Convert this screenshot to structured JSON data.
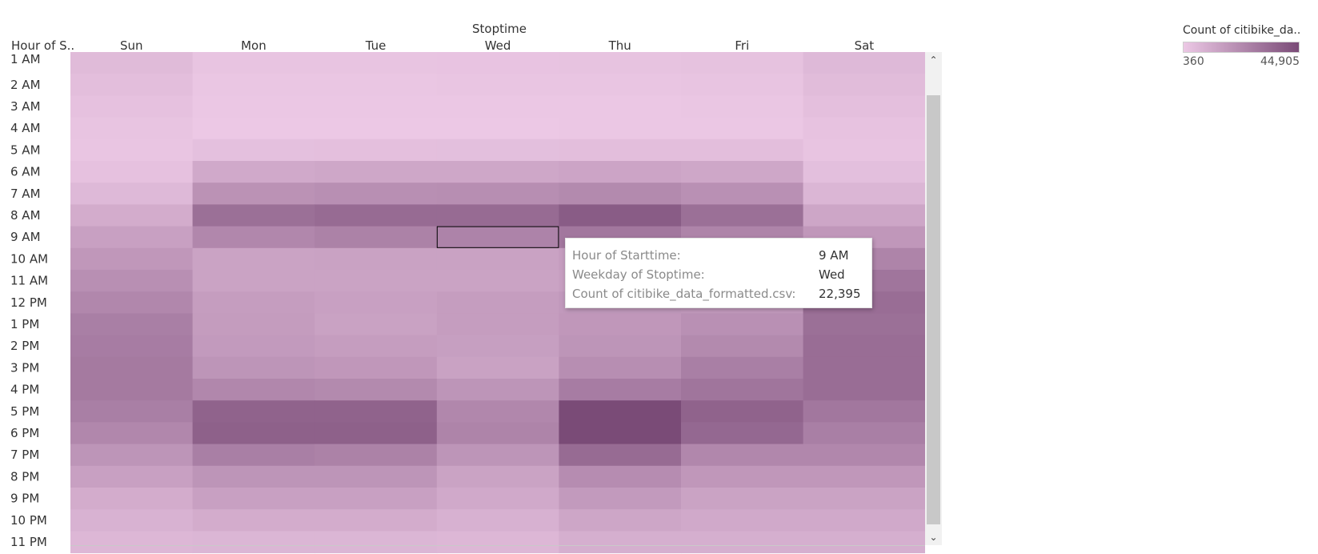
{
  "colors": {
    "low": "#ecc8e5",
    "high": "#7a4b77",
    "cell_border": "#000000"
  },
  "chart_data": {
    "type": "heatmap",
    "column_header": "Stoptime",
    "row_header": "Hour of S..",
    "columns": [
      "Sun",
      "Mon",
      "Tue",
      "Wed",
      "Thu",
      "Fri",
      "Sat"
    ],
    "rows": [
      "1 AM",
      "2 AM",
      "3 AM",
      "4 AM",
      "5 AM",
      "6 AM",
      "7 AM",
      "8 AM",
      "9 AM",
      "10 AM",
      "11 AM",
      "12 PM",
      "1 PM",
      "2 PM",
      "3 PM",
      "4 PM",
      "5 PM",
      "6 PM",
      "7 PM",
      "8 PM",
      "9 PM",
      "10 PM",
      "11 PM"
    ],
    "values": [
      [
        3600,
        1200,
        1200,
        1300,
        1400,
        1700,
        4000
      ],
      [
        2600,
        800,
        800,
        900,
        1000,
        1200,
        3200
      ],
      [
        1800,
        500,
        500,
        500,
        600,
        800,
        2300
      ],
      [
        1200,
        400,
        360,
        400,
        450,
        550,
        1600
      ],
      [
        1000,
        2200,
        2400,
        2500,
        2700,
        2600,
        1200
      ],
      [
        1800,
        9000,
        9500,
        9800,
        10500,
        9500,
        2500
      ],
      [
        4000,
        17000,
        18000,
        18500,
        20000,
        17500,
        5000
      ],
      [
        8000,
        30000,
        32000,
        32000,
        38000,
        30000,
        10000
      ],
      [
        12000,
        21000,
        23000,
        22395,
        27000,
        22000,
        15000
      ],
      [
        15000,
        11000,
        11500,
        11500,
        13000,
        12000,
        22000
      ],
      [
        18000,
        11000,
        11000,
        11000,
        12500,
        12000,
        28000
      ],
      [
        21000,
        13000,
        12000,
        13000,
        14500,
        14000,
        31000
      ],
      [
        24000,
        13500,
        11500,
        13000,
        15000,
        17500,
        30000
      ],
      [
        25000,
        14000,
        13000,
        12500,
        16000,
        20000,
        31000
      ],
      [
        26000,
        16000,
        15000,
        11500,
        18500,
        24000,
        31000
      ],
      [
        26000,
        21000,
        20000,
        16000,
        25000,
        28000,
        31000
      ],
      [
        24000,
        35000,
        35000,
        21000,
        44905,
        35000,
        27000
      ],
      [
        21000,
        36000,
        36000,
        22000,
        44905,
        33000,
        24000
      ],
      [
        16000,
        24000,
        23000,
        16000,
        32000,
        21000,
        21000
      ],
      [
        12000,
        16000,
        16000,
        11000,
        19000,
        15000,
        15000
      ],
      [
        8000,
        12000,
        12000,
        9000,
        14000,
        11000,
        11000
      ],
      [
        6000,
        8000,
        8000,
        6500,
        10000,
        9000,
        9000
      ],
      [
        4500,
        5000,
        5000,
        4500,
        7000,
        7000,
        7000
      ]
    ],
    "legend": {
      "title": "Count of citibike_da..",
      "min_label": "360",
      "max_label": "44,905",
      "min": 360,
      "max": 44905
    },
    "highlight": {
      "row": "9 AM",
      "column": "Wed"
    },
    "tooltip": [
      {
        "key": "Hour of Starttime:",
        "value": "9 AM"
      },
      {
        "key": "Weekday of Stoptime:",
        "value": "Wed"
      },
      {
        "key": "Count of citibike_data_formatted.csv:",
        "value": "22,395"
      }
    ]
  },
  "scrollbar": {
    "up_icon": "chevron-up-icon",
    "down_icon": "chevron-down-icon"
  }
}
